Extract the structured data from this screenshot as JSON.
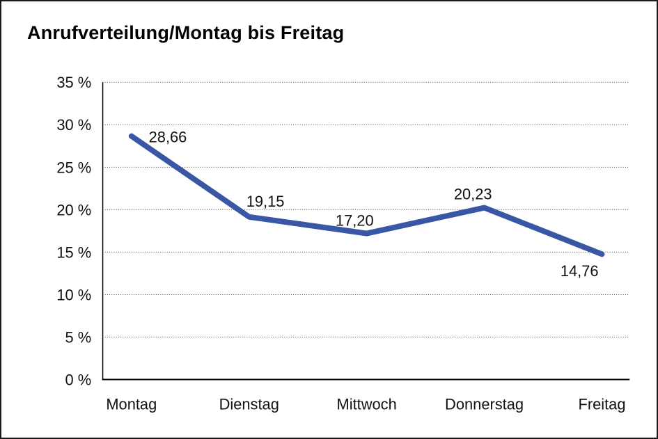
{
  "window": {
    "background": "#ffffff",
    "border_color": "#1a1a1a"
  },
  "chart_data": {
    "type": "line",
    "title": "Anrufverteilung/Montag bis Freitag",
    "categories": [
      "Montag",
      "Dienstag",
      "Mittwoch",
      "Donnerstag",
      "Freitag"
    ],
    "values": [
      28.66,
      19.15,
      17.2,
      20.23,
      14.76
    ],
    "point_labels": [
      "28,66",
      "19,15",
      "17,20",
      "20,23",
      "14,76"
    ],
    "xlabel": "",
    "ylabel": "",
    "ylim": [
      0,
      35
    ],
    "ytick_step": 5,
    "ytick_labels": [
      "0 %",
      "5 %",
      "10 %",
      "15 %",
      "20 %",
      "25 %",
      "30 %",
      "35 %"
    ],
    "grid": "horizontal-dotted",
    "legend": "none",
    "line_color": "#3A57A5",
    "text_color": "#111111",
    "grid_color": "#4a4a4a",
    "axis_color": "#000000"
  }
}
